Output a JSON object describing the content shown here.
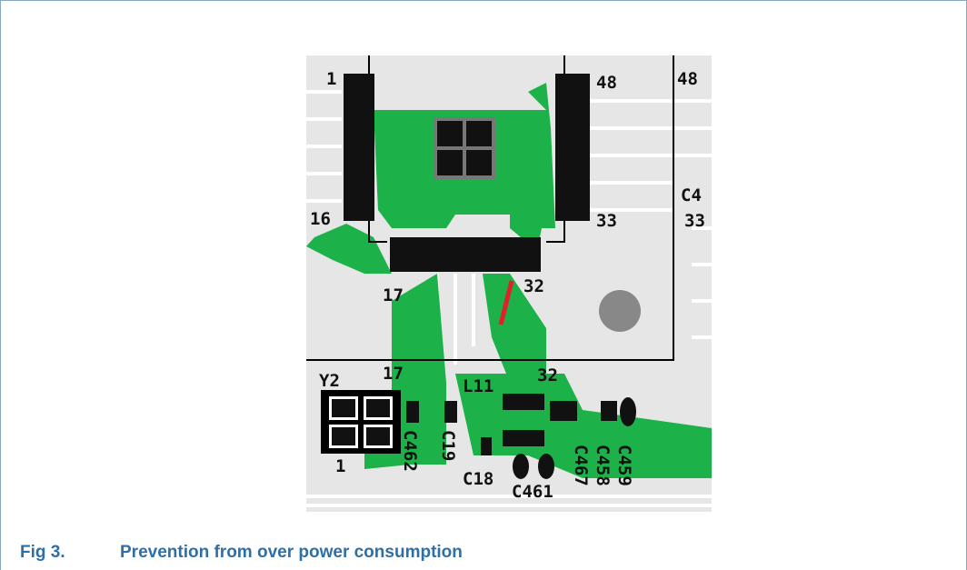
{
  "figure": {
    "number": "Fig 3.",
    "caption": "Prevention from over power consumption",
    "board_labels": [
      "1",
      "48",
      "48",
      "16",
      "33",
      "C4",
      "33",
      "17",
      "32",
      "Y2",
      "17",
      "L11",
      "32",
      "1",
      "C462",
      "C19",
      "C18",
      "C461",
      "C467",
      "C458",
      "C459"
    ]
  }
}
